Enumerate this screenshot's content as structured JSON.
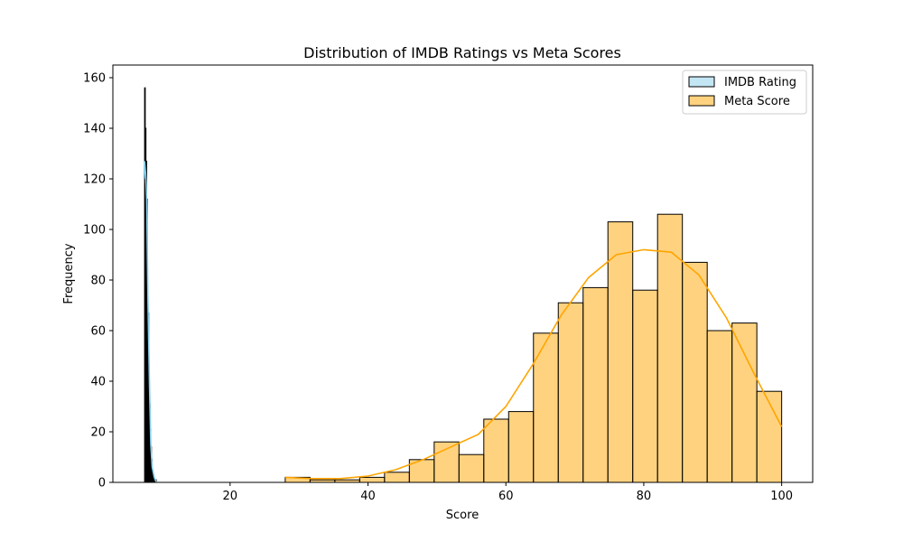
{
  "chart_data": {
    "type": "histogram",
    "title": "Distribution of IMDB Ratings vs Meta Scores",
    "xlabel": "Score",
    "ylabel": "Frequency",
    "xlim": [
      3,
      104.5
    ],
    "ylim": [
      0,
      165
    ],
    "xticks": [
      20,
      40,
      60,
      80,
      100
    ],
    "yticks": [
      0,
      20,
      40,
      60,
      80,
      100,
      120,
      140,
      160
    ],
    "grid": false,
    "legend": {
      "placement": "top-right"
    },
    "series": [
      {
        "name": "IMDB Rating",
        "fill": "#87ceeb",
        "kde_color": "#87ceeb",
        "bins": [
          {
            "x0": 7.6,
            "x1": 7.7,
            "count": 156
          },
          {
            "x0": 7.7,
            "x1": 7.8,
            "count": 140
          },
          {
            "x0": 7.8,
            "x1": 7.9,
            "count": 127
          },
          {
            "x0": 7.9,
            "x1": 8.0,
            "count": 112
          },
          {
            "x0": 8.0,
            "x1": 8.1,
            "count": 74
          },
          {
            "x0": 8.1,
            "x1": 8.2,
            "count": 67
          },
          {
            "x0": 8.2,
            "x1": 8.3,
            "count": 44
          },
          {
            "x0": 8.3,
            "x1": 8.4,
            "count": 31
          },
          {
            "x0": 8.4,
            "x1": 8.5,
            "count": 21
          },
          {
            "x0": 8.5,
            "x1": 8.6,
            "count": 14
          },
          {
            "x0": 8.6,
            "x1": 8.7,
            "count": 9
          },
          {
            "x0": 8.7,
            "x1": 8.8,
            "count": 5
          },
          {
            "x0": 8.8,
            "x1": 8.9,
            "count": 3
          },
          {
            "x0": 8.9,
            "x1": 9.0,
            "count": 2
          },
          {
            "x0": 9.0,
            "x1": 9.1,
            "count": 1
          },
          {
            "x0": 9.2,
            "x1": 9.3,
            "count": 1
          }
        ],
        "kde": [
          [
            7.5,
            120
          ],
          [
            7.6,
            127
          ],
          [
            7.75,
            122
          ],
          [
            7.9,
            112
          ],
          [
            8.1,
            70
          ],
          [
            8.3,
            40
          ],
          [
            8.5,
            15
          ],
          [
            8.7,
            6
          ],
          [
            9.0,
            2
          ],
          [
            9.3,
            0
          ]
        ]
      },
      {
        "name": "Meta Score",
        "fill": "#ffa500",
        "kde_color": "#ffa500",
        "bins": [
          {
            "x0": 28.0,
            "x1": 31.6,
            "count": 2
          },
          {
            "x0": 31.6,
            "x1": 35.2,
            "count": 1
          },
          {
            "x0": 35.2,
            "x1": 38.8,
            "count": 1
          },
          {
            "x0": 38.8,
            "x1": 42.4,
            "count": 2
          },
          {
            "x0": 42.4,
            "x1": 46.0,
            "count": 4
          },
          {
            "x0": 46.0,
            "x1": 49.6,
            "count": 9
          },
          {
            "x0": 49.6,
            "x1": 53.2,
            "count": 16
          },
          {
            "x0": 53.2,
            "x1": 56.8,
            "count": 11
          },
          {
            "x0": 56.8,
            "x1": 60.4,
            "count": 25
          },
          {
            "x0": 60.4,
            "x1": 64.0,
            "count": 28
          },
          {
            "x0": 64.0,
            "x1": 67.6,
            "count": 59
          },
          {
            "x0": 67.6,
            "x1": 71.2,
            "count": 71
          },
          {
            "x0": 71.2,
            "x1": 74.8,
            "count": 77
          },
          {
            "x0": 74.8,
            "x1": 78.4,
            "count": 103
          },
          {
            "x0": 78.4,
            "x1": 82.0,
            "count": 76
          },
          {
            "x0": 82.0,
            "x1": 85.6,
            "count": 106
          },
          {
            "x0": 85.6,
            "x1": 89.2,
            "count": 87
          },
          {
            "x0": 89.2,
            "x1": 92.8,
            "count": 60
          },
          {
            "x0": 92.8,
            "x1": 96.4,
            "count": 63
          },
          {
            "x0": 96.4,
            "x1": 100.0,
            "count": 36
          }
        ],
        "kde": [
          [
            28,
            2
          ],
          [
            32,
            1.5
          ],
          [
            36,
            1.5
          ],
          [
            40,
            2.5
          ],
          [
            44,
            5
          ],
          [
            48,
            9
          ],
          [
            52,
            14
          ],
          [
            56,
            19
          ],
          [
            60,
            30
          ],
          [
            64,
            47
          ],
          [
            68,
            66
          ],
          [
            72,
            81
          ],
          [
            76,
            90
          ],
          [
            80,
            92
          ],
          [
            84,
            91
          ],
          [
            88,
            82
          ],
          [
            92,
            65
          ],
          [
            96,
            43
          ],
          [
            100,
            22
          ]
        ]
      }
    ]
  }
}
